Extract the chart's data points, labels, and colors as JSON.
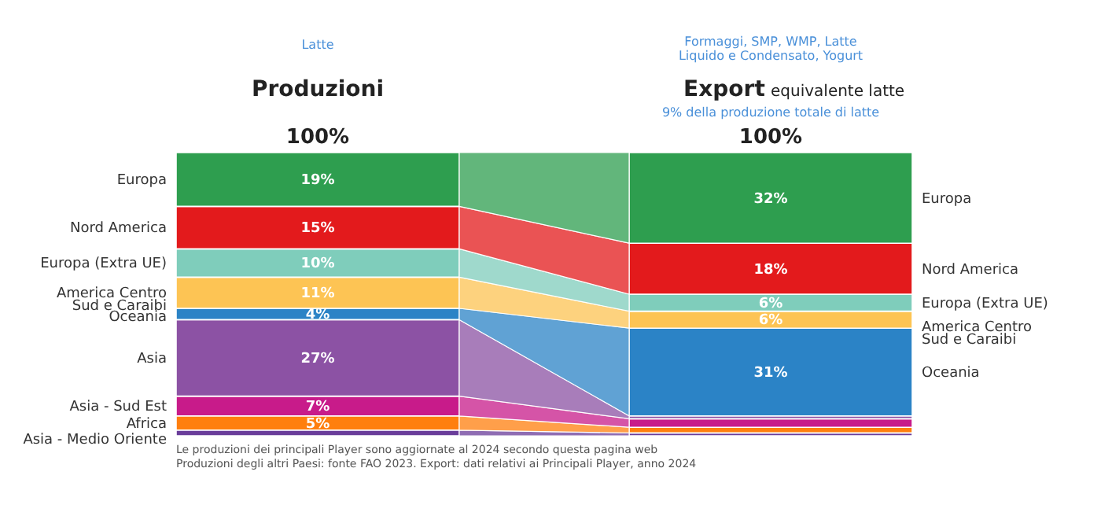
{
  "chart_data": {
    "type": "bar",
    "stacked": true,
    "categories": [
      "Produzioni",
      "Export"
    ],
    "ylim": [
      0,
      100
    ],
    "legend": false,
    "grid": false,
    "tick_labels": false,
    "totals": [
      "100%",
      "100%"
    ],
    "series": [
      {
        "name": "Asia - Medio Oriente",
        "color": "#6a3d9a",
        "values": [
          2,
          1
        ],
        "value_labels": [
          null,
          null
        ]
      },
      {
        "name": "Africa",
        "color": "#ff7f0e",
        "values": [
          5,
          2
        ],
        "value_labels": [
          "5%",
          null
        ]
      },
      {
        "name": "Asia - Sud Est",
        "color": "#c81b8a",
        "values": [
          7,
          3
        ],
        "value_labels": [
          "7%",
          null
        ]
      },
      {
        "name": "Asia",
        "color": "#8c52a4",
        "values": [
          27,
          1
        ],
        "value_labels": [
          "27%",
          null
        ]
      },
      {
        "name": "Oceania",
        "color": "#2b83c6",
        "values": [
          4,
          31
        ],
        "value_labels": [
          "4%",
          "31%"
        ]
      },
      {
        "name": "America Centro Sud e Caraibi",
        "color": "#fdc454",
        "values": [
          11,
          6
        ],
        "value_labels": [
          "11%",
          "6%"
        ]
      },
      {
        "name": "Europa (Extra UE)",
        "color": "#7fcdbb",
        "values": [
          10,
          6
        ],
        "value_labels": [
          "10%",
          "6%"
        ]
      },
      {
        "name": "Nord America",
        "color": "#e31a1c",
        "values": [
          15,
          18
        ],
        "value_labels": [
          "15%",
          "18%"
        ]
      },
      {
        "name": "Europa",
        "color": "#2e9e4f",
        "values": [
          19,
          32
        ],
        "value_labels": [
          "19%",
          "32%"
        ]
      }
    ],
    "annotations": [
      "Latte",
      "Formaggi, SMP, WMP, Latte Liquido e Condensato, Yogurt",
      "equivalente latte",
      "9% della produzione totale di latte",
      "Le produzioni dei principali Player sono aggiornate al 2024 secondo questa pagina web",
      "Produzioni degli altri Paesi: fonte FAO 2023. Export: dati relativi ai Principali Player, anno 2024"
    ]
  }
}
